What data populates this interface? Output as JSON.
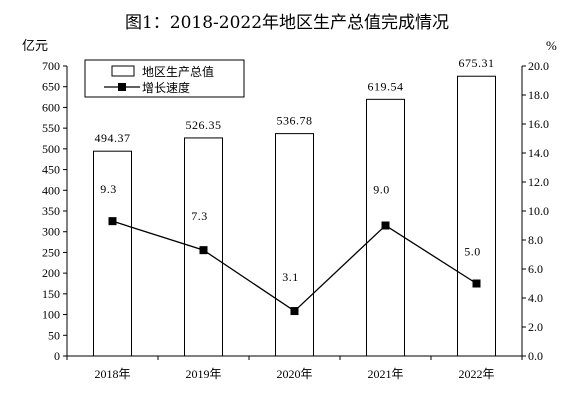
{
  "title": "图1：2018-2022年地区生产总值完成情况",
  "chart_data": {
    "type": "bar",
    "categories": [
      "2018年",
      "2019年",
      "2020年",
      "2021年",
      "2022年"
    ],
    "series": [
      {
        "name": "地区生产总值",
        "type": "bar",
        "axis": "left",
        "values": [
          494.37,
          526.35,
          536.78,
          619.54,
          675.31
        ],
        "labels": [
          "494.37",
          "526.35",
          "536.78",
          "619.54",
          "675.31"
        ]
      },
      {
        "name": "增长速度",
        "type": "line",
        "axis": "right",
        "values": [
          9.3,
          7.3,
          3.1,
          9.0,
          5.0
        ],
        "labels": [
          "9.3",
          "7.3",
          "3.1",
          "9.0",
          "5.0"
        ]
      }
    ],
    "y_left": {
      "unit": "亿元",
      "ylim": [
        0,
        700
      ],
      "ticks": [
        "0",
        "50",
        "100",
        "150",
        "200",
        "250",
        "300",
        "350",
        "400",
        "450",
        "500",
        "550",
        "600",
        "650",
        "700"
      ]
    },
    "y_right": {
      "unit": "%",
      "ylim": [
        0,
        20
      ],
      "ticks": [
        "0.0",
        "2.0",
        "4.0",
        "6.0",
        "8.0",
        "10.0",
        "12.0",
        "14.0",
        "16.0",
        "18.0",
        "20.0"
      ]
    },
    "legend_position": "top-left",
    "grid": false
  }
}
